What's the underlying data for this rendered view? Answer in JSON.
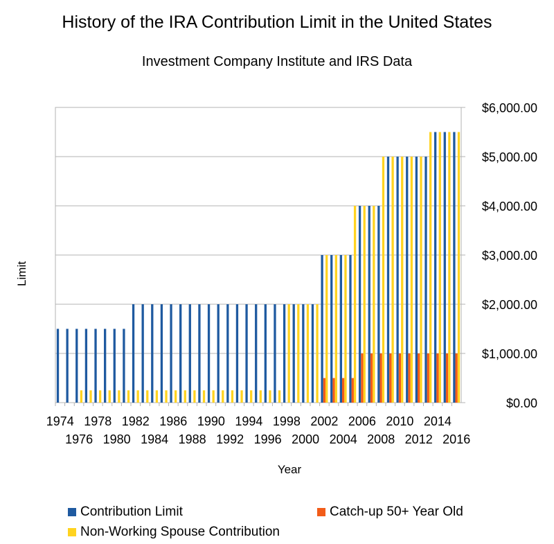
{
  "chart_data": {
    "type": "bar",
    "title": "History of the IRA Contribution Limit in the United States",
    "subtitle": "Investment Company Institute and IRS Data",
    "xlabel": "Year",
    "ylabel": "Limit",
    "ylim": [
      0,
      6000
    ],
    "y_ticks": [
      "$0.00",
      "$1,000.00",
      "$2,000.00",
      "$3,000.00",
      "$4,000.00",
      "$5,000.00",
      "$6,000.00"
    ],
    "y_tick_values": [
      0,
      1000,
      2000,
      3000,
      4000,
      5000,
      6000
    ],
    "x_ticks_top": [
      "1974",
      "1978",
      "1982",
      "1986",
      "1990",
      "1994",
      "1998",
      "2002",
      "2006",
      "2010",
      "2014"
    ],
    "x_ticks_bottom": [
      "1976",
      "1980",
      "1984",
      "1988",
      "1992",
      "1996",
      "2000",
      "2004",
      "2008",
      "2012",
      "2016"
    ],
    "categories": [
      "1974",
      "1975",
      "1976",
      "1977",
      "1978",
      "1979",
      "1980",
      "1981",
      "1982",
      "1983",
      "1984",
      "1985",
      "1986",
      "1987",
      "1988",
      "1989",
      "1990",
      "1991",
      "1992",
      "1993",
      "1994",
      "1995",
      "1996",
      "1997",
      "1998",
      "1999",
      "2000",
      "2001",
      "2002",
      "2003",
      "2004",
      "2005",
      "2006",
      "2007",
      "2008",
      "2009",
      "2010",
      "2011",
      "2012",
      "2013",
      "2014",
      "2015",
      "2016"
    ],
    "series": [
      {
        "name": "Contribution Limit",
        "color": "#1f5aa0",
        "values": [
          1500,
          1500,
          1500,
          1500,
          1500,
          1500,
          1500,
          1500,
          2000,
          2000,
          2000,
          2000,
          2000,
          2000,
          2000,
          2000,
          2000,
          2000,
          2000,
          2000,
          2000,
          2000,
          2000,
          2000,
          2000,
          2000,
          2000,
          2000,
          3000,
          3000,
          3000,
          3000,
          4000,
          4000,
          4000,
          5000,
          5000,
          5000,
          5000,
          5000,
          5500,
          5500,
          5500
        ]
      },
      {
        "name": "Catch-up 50+ Year Old",
        "color": "#f25c19",
        "values": [
          0,
          0,
          0,
          0,
          0,
          0,
          0,
          0,
          0,
          0,
          0,
          0,
          0,
          0,
          0,
          0,
          0,
          0,
          0,
          0,
          0,
          0,
          0,
          0,
          0,
          0,
          0,
          0,
          500,
          500,
          500,
          500,
          1000,
          1000,
          1000,
          1000,
          1000,
          1000,
          1000,
          1000,
          1000,
          1000,
          1000
        ]
      },
      {
        "name": "Non-Working Spouse Contribution",
        "color": "#ffd320",
        "values": [
          0,
          0,
          250,
          250,
          250,
          250,
          250,
          250,
          250,
          250,
          250,
          250,
          250,
          250,
          250,
          250,
          250,
          250,
          250,
          250,
          250,
          250,
          250,
          250,
          2000,
          2000,
          2000,
          2000,
          3000,
          3000,
          3000,
          4000,
          4000,
          4000,
          5000,
          5000,
          5000,
          5000,
          5000,
          5500,
          5500,
          5500,
          5500
        ]
      }
    ],
    "legend": [
      "Contribution Limit",
      "Catch-up 50+ Year Old",
      "Non-Working Spouse Contribution"
    ]
  }
}
